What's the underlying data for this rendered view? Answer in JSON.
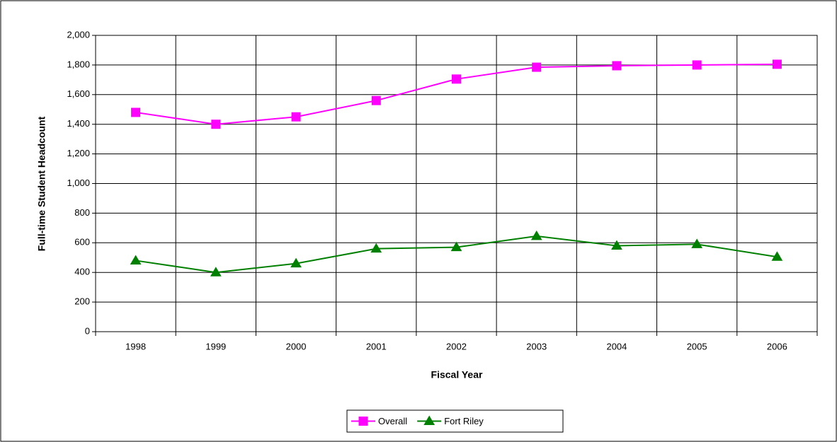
{
  "chart_data": {
    "type": "line",
    "x_label": "Fiscal Year",
    "y_label": "Full-time Student Headcount",
    "categories": [
      "1998",
      "1999",
      "2000",
      "2001",
      "2002",
      "2003",
      "2004",
      "2005",
      "2006"
    ],
    "series": [
      {
        "name": "Overall",
        "color": "#ff00ff",
        "marker": "square",
        "values": [
          1480,
          1400,
          1450,
          1560,
          1705,
          1785,
          1795,
          1800,
          1805
        ]
      },
      {
        "name": "Fort Riley",
        "color": "#008000",
        "marker": "triangle",
        "values": [
          480,
          400,
          460,
          560,
          570,
          645,
          580,
          590,
          505
        ]
      }
    ],
    "ylim": [
      0,
      2000
    ],
    "yticks": [
      0,
      200,
      400,
      600,
      800,
      {
        "value": 1000,
        "label": "1,000"
      },
      {
        "value": 1200,
        "label": "1,200"
      },
      {
        "value": 1400,
        "label": "1,400"
      },
      {
        "value": 1600,
        "label": "1,600"
      },
      {
        "value": 1800,
        "label": "1,800"
      },
      {
        "value": 2000,
        "label": "2,000"
      }
    ],
    "grid": true,
    "legend": "bottom"
  }
}
